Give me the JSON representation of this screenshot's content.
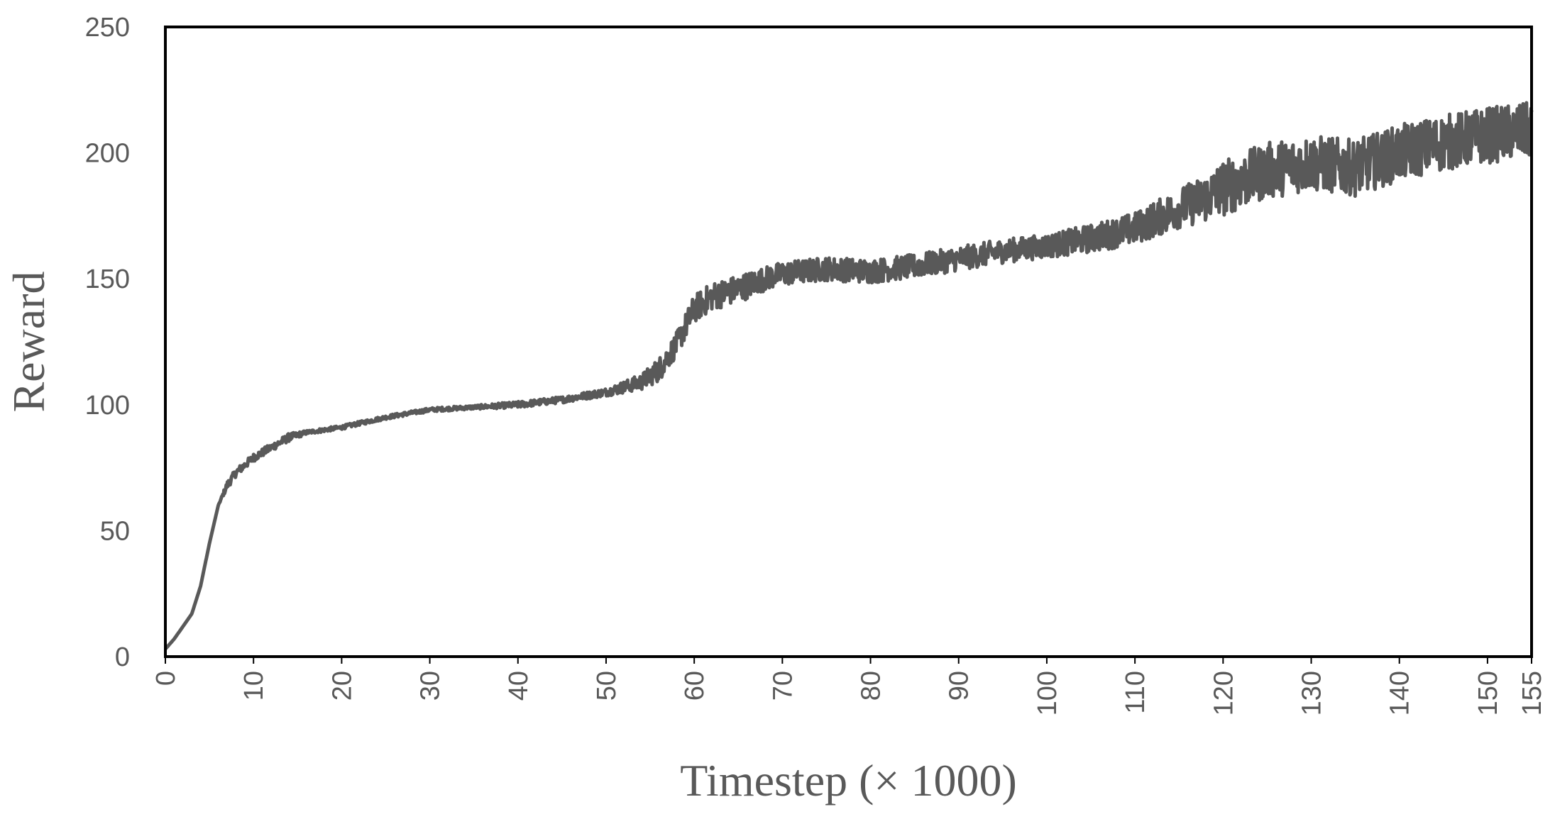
{
  "chart_data": {
    "type": "line",
    "title": "",
    "xlabel": "Timestep (× 1000)",
    "ylabel": "Reward",
    "xlim": [
      0,
      155
    ],
    "ylim": [
      0,
      250
    ],
    "yticks": [
      0,
      50,
      100,
      150,
      200,
      250
    ],
    "xticks": [
      0,
      10,
      20,
      30,
      40,
      50,
      60,
      70,
      80,
      90,
      100,
      110,
      120,
      130,
      140,
      150,
      155
    ],
    "grid": false,
    "legend": "none",
    "line_color": "#595959",
    "frame_color": "#000000",
    "series": [
      {
        "x": [
          0,
          1,
          2,
          3,
          4,
          5,
          6,
          7,
          8,
          9,
          10,
          12,
          14,
          16,
          18,
          20,
          25,
          30,
          35,
          40,
          45,
          50,
          52,
          54,
          56,
          58,
          60,
          62,
          65,
          68,
          70,
          75,
          80,
          85,
          90,
          95,
          100,
          105,
          110,
          115,
          118,
          120,
          125,
          130,
          135,
          140,
          145,
          150,
          155
        ],
        "y": [
          3,
          7,
          12,
          17,
          28,
          45,
          60,
          68,
          73,
          76,
          79,
          83,
          87,
          89,
          90,
          91,
          95,
          98,
          99,
          100,
          102,
          105,
          107,
          109,
          114,
          124,
          138,
          143,
          146,
          150,
          152,
          154,
          153,
          155,
          158,
          161,
          163,
          166,
          170,
          178,
          182,
          186,
          193,
          196,
          194,
          200,
          204,
          207,
          209
        ],
        "noise": [
          0,
          0,
          0,
          0,
          0,
          0,
          0,
          1,
          1,
          1,
          1,
          1,
          1,
          0.5,
          0.5,
          0.5,
          0.5,
          0.5,
          0.5,
          0.8,
          0.8,
          1,
          1.5,
          2,
          3,
          3,
          3.5,
          3.5,
          3.5,
          3,
          3,
          3,
          3,
          3,
          3,
          3,
          3,
          3.5,
          4,
          5,
          6,
          7,
          7,
          7,
          7,
          7,
          7,
          7,
          7
        ]
      }
    ]
  }
}
